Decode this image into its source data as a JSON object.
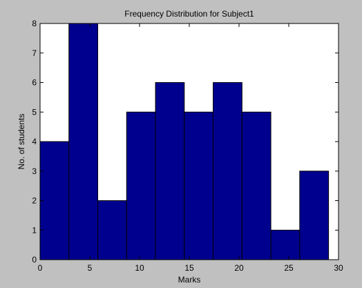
{
  "chart_data": {
    "type": "bar",
    "title": "Frequency Distribution for Subject1",
    "xlabel": "Marks",
    "ylabel": "No. of students",
    "xlim": [
      0,
      30
    ],
    "ylim": [
      0,
      8
    ],
    "xticks": [
      0,
      5,
      10,
      15,
      20,
      25,
      30
    ],
    "yticks": [
      0,
      1,
      2,
      3,
      4,
      5,
      6,
      7,
      8
    ],
    "bins": [
      {
        "x0": 0.0,
        "x1": 2.9,
        "count": 4
      },
      {
        "x0": 2.9,
        "x1": 5.8,
        "count": 8
      },
      {
        "x0": 5.8,
        "x1": 8.7,
        "count": 2
      },
      {
        "x0": 8.7,
        "x1": 11.6,
        "count": 5
      },
      {
        "x0": 11.6,
        "x1": 14.5,
        "count": 6
      },
      {
        "x0": 14.5,
        "x1": 17.4,
        "count": 5
      },
      {
        "x0": 17.4,
        "x1": 20.3,
        "count": 6
      },
      {
        "x0": 20.3,
        "x1": 23.2,
        "count": 5
      },
      {
        "x0": 23.2,
        "x1": 26.1,
        "count": 1
      },
      {
        "x0": 26.1,
        "x1": 29.0,
        "count": 3
      }
    ],
    "bar_color": "#00008f",
    "edge_color": "#000000",
    "grid": false,
    "legend": "none"
  }
}
